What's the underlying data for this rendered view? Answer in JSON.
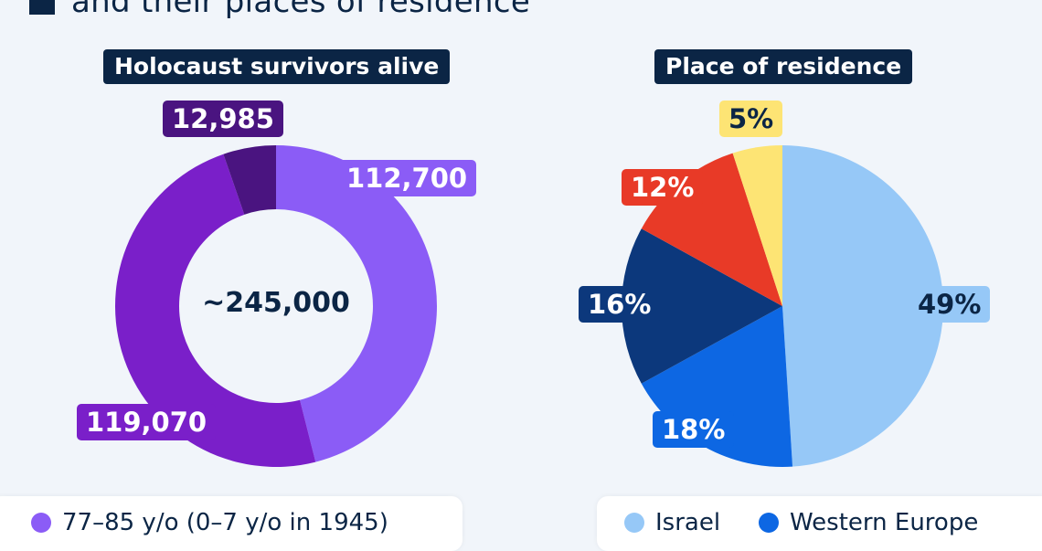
{
  "heading": {
    "text": "and their places of residence"
  },
  "left_chart_title": "Holocaust survivors alive",
  "right_chart_title": "Place of residence",
  "donut_center": "~245,000",
  "donut_labels": [
    "112,700",
    "119,070",
    "12,985"
  ],
  "pie_labels": [
    "49%",
    "18%",
    "16%",
    "12%",
    "5%"
  ],
  "legend_left": {
    "item1": "77–85 y/o (0–7 y/o in 1945)"
  },
  "legend_right": {
    "item1": "Israel",
    "item2": "Western Europe"
  },
  "colors": {
    "navy": "#0b2545",
    "donut": [
      "#8b5cf6",
      "#7a1fc9",
      "#4a1480"
    ],
    "pie": [
      "#96c8f7",
      "#0d67e3",
      "#0c387c",
      "#e83a27",
      "#fde474"
    ]
  },
  "chart_data": [
    {
      "type": "pie",
      "title": "Holocaust survivors alive",
      "donut": true,
      "center_label": "~245,000",
      "values": [
        112700,
        119070,
        12985
      ],
      "value_labels": [
        "112,700",
        "119,070",
        "12,985"
      ],
      "colors": [
        "#8b5cf6",
        "#7a1fc9",
        "#4a1480"
      ]
    },
    {
      "type": "pie",
      "title": "Place of residence",
      "values": [
        49,
        18,
        16,
        12,
        5
      ],
      "value_labels": [
        "49%",
        "18%",
        "16%",
        "12%",
        "5%"
      ],
      "legend": [
        "Israel",
        "Western Europe"
      ],
      "colors": [
        "#96c8f7",
        "#0d67e3",
        "#0c387c",
        "#e83a27",
        "#fde474"
      ]
    }
  ]
}
